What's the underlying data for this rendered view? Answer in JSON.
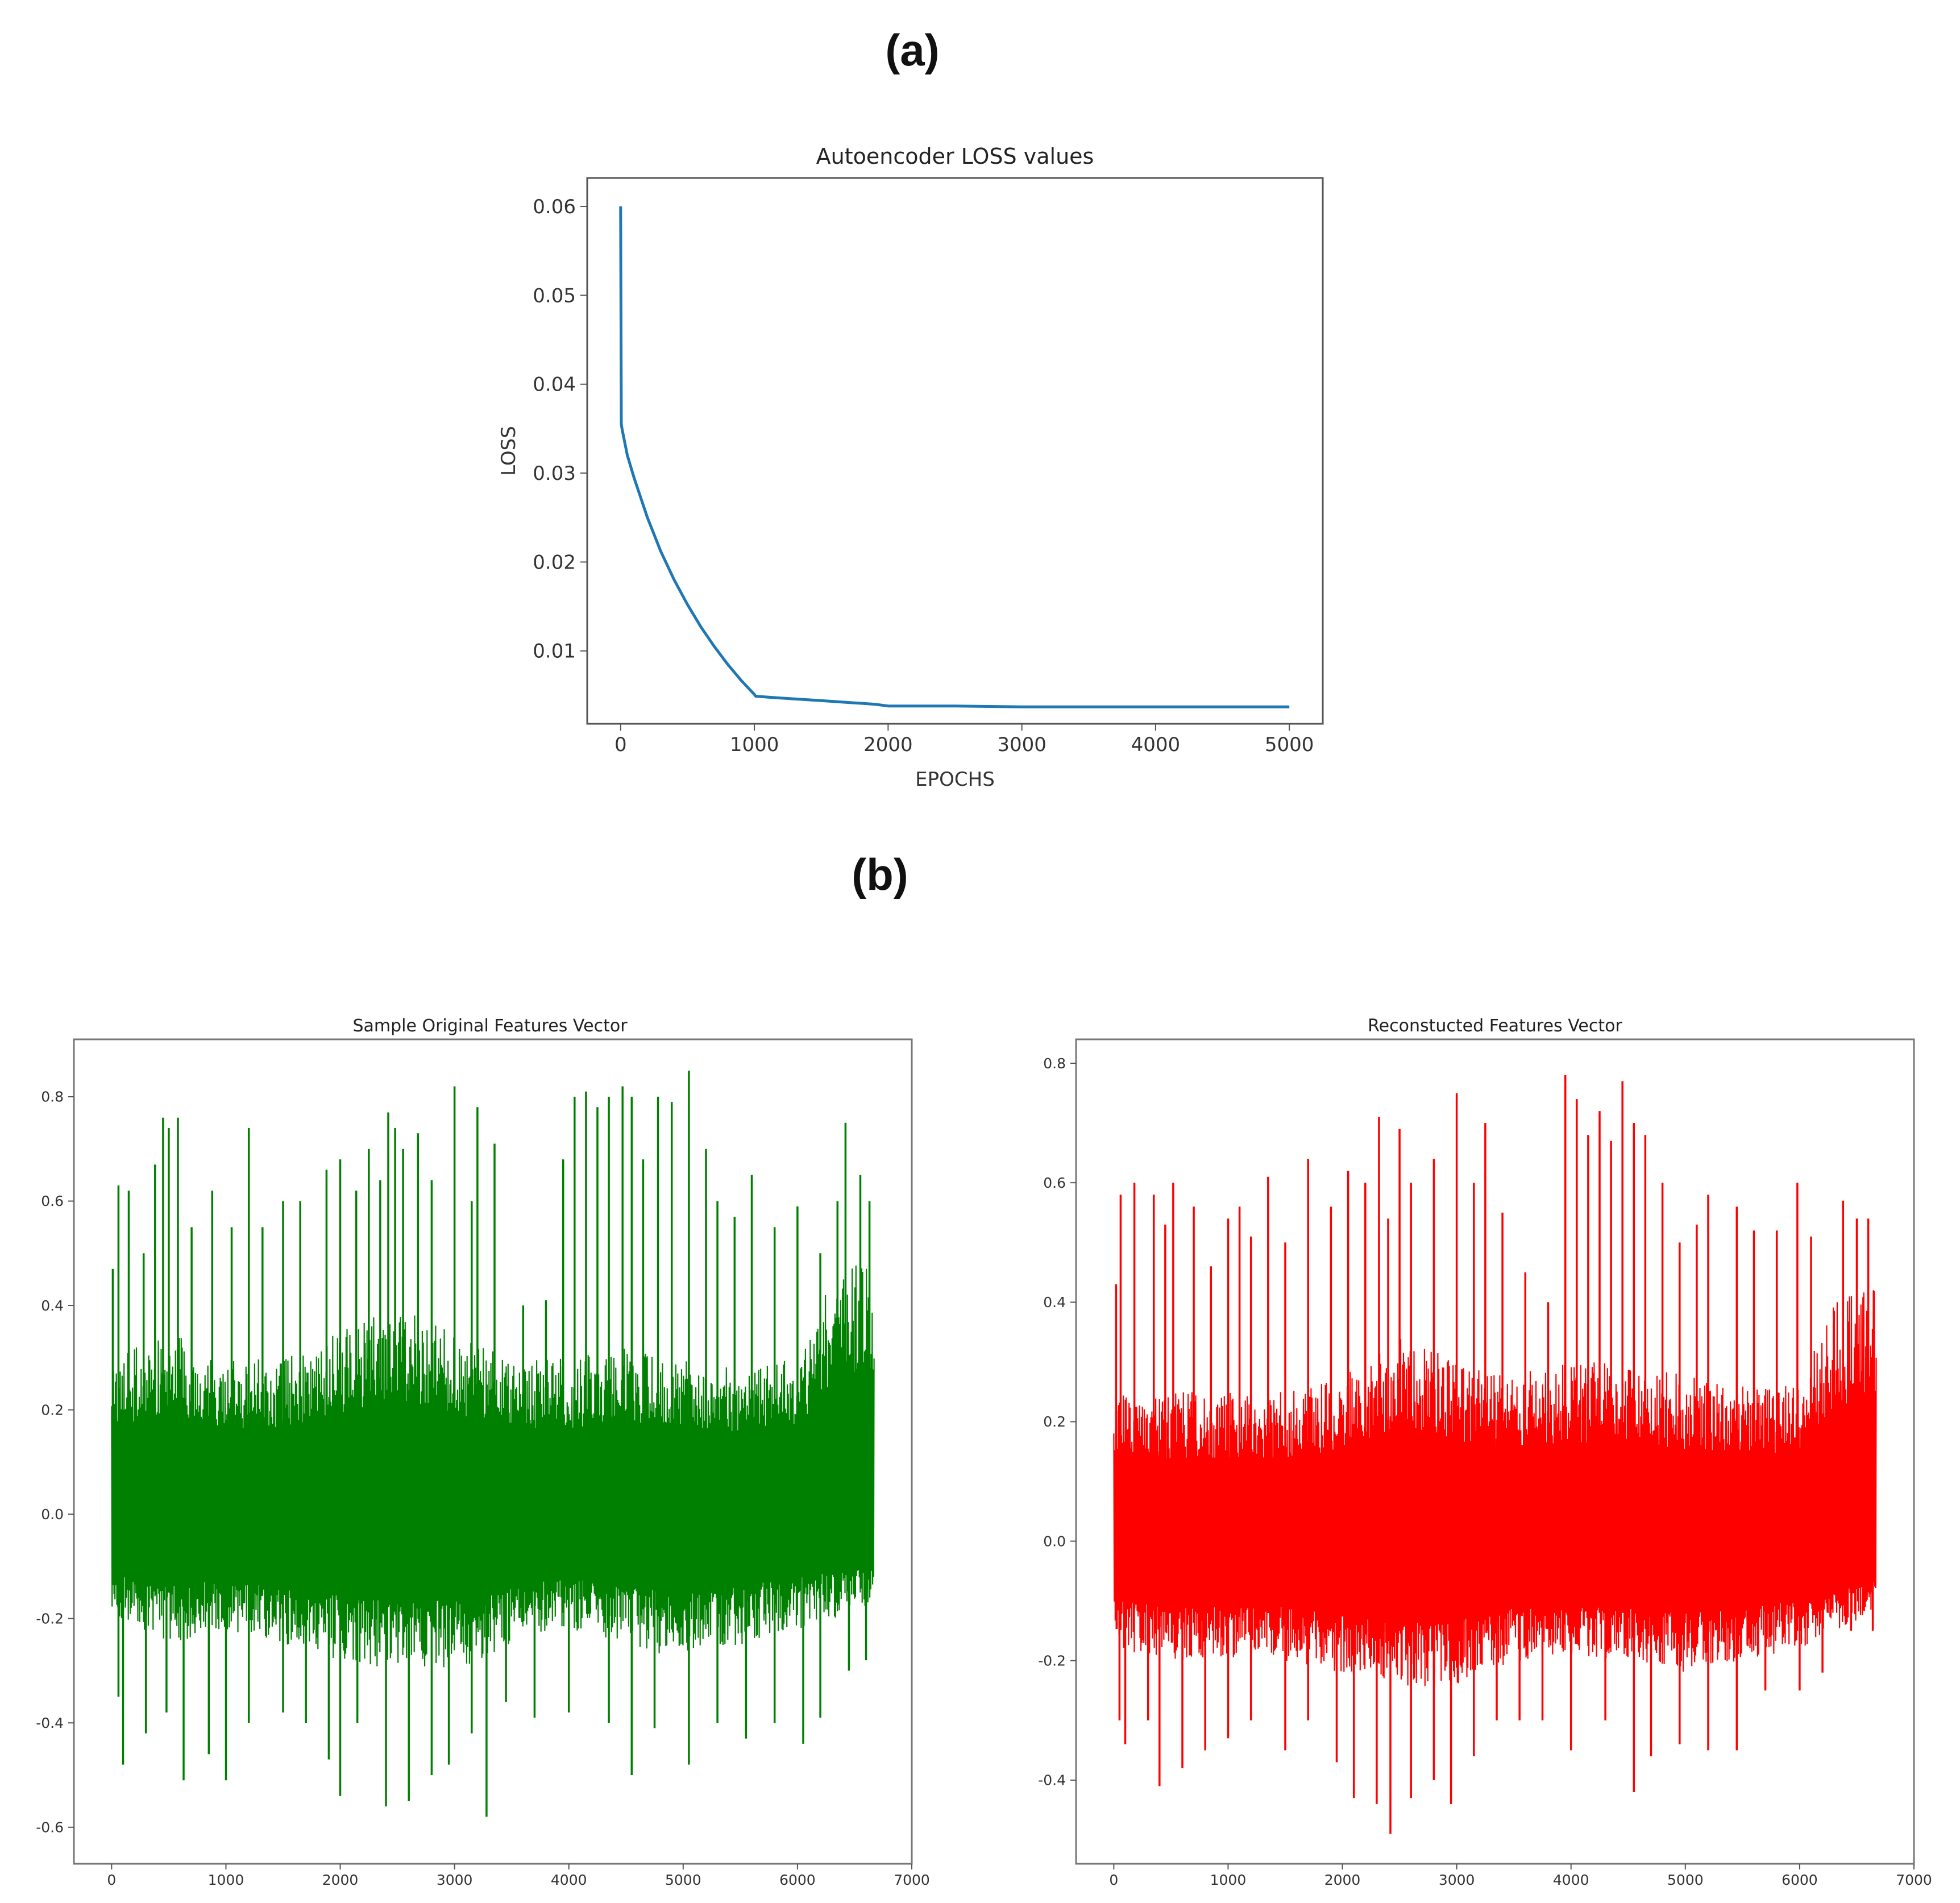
{
  "panel_labels": {
    "a": "(a)",
    "b": "(b)"
  },
  "chart_data": [
    {
      "type": "line",
      "title": "Autoencoder LOSS values",
      "xlabel": "EPOCHS",
      "ylabel": "LOSS",
      "xlim": [
        -250,
        5250
      ],
      "ylim": [
        0.0018,
        0.0632
      ],
      "xticks": [
        0,
        1000,
        2000,
        3000,
        4000,
        5000
      ],
      "yticks": [
        0.01,
        0.02,
        0.03,
        0.04,
        0.05,
        0.06
      ],
      "x_range": [
        0,
        5000
      ],
      "line_color": "#1f77b4",
      "grid": false,
      "series": [
        {
          "x": [
            0,
            5,
            10,
            50,
            100,
            200,
            300,
            400,
            500,
            600,
            700,
            800,
            900,
            1000,
            1010,
            1100,
            1200,
            1300,
            1400,
            1500,
            1600,
            1700,
            1800,
            1900,
            2000,
            2500,
            3000,
            3500,
            4000,
            4500,
            5000
          ],
          "values": [
            0.06,
            0.0355,
            0.035,
            0.032,
            0.0295,
            0.025,
            0.0212,
            0.018,
            0.0152,
            0.0127,
            0.0105,
            0.0085,
            0.0067,
            0.0051,
            0.0049,
            0.0048,
            0.0047,
            0.0046,
            0.0045,
            0.0044,
            0.0043,
            0.0042,
            0.0041,
            0.004,
            0.0038,
            0.0038,
            0.0037,
            0.0037,
            0.0037,
            0.0037,
            0.0037
          ]
        }
      ]
    },
    {
      "type": "line",
      "title": "Sample Original Features Vector",
      "xlim": [
        -330,
        7000
      ],
      "ylim": [
        -0.67,
        0.91
      ],
      "xticks": [
        0,
        1000,
        2000,
        3000,
        4000,
        5000,
        6000,
        7000
      ],
      "yticks": [
        -0.6,
        -0.4,
        -0.2,
        0.0,
        0.2,
        0.4,
        0.6,
        0.8
      ],
      "x_range": [
        0,
        6670
      ],
      "line_color": "#008000",
      "grid": false,
      "envelope": {
        "x": [
          0,
          500,
          1000,
          1500,
          2000,
          2500,
          3000,
          3500,
          4000,
          4500,
          5000,
          5500,
          6000,
          6300,
          6670
        ],
        "upper": [
          0.3,
          0.35,
          0.3,
          0.3,
          0.35,
          0.4,
          0.35,
          0.3,
          0.3,
          0.32,
          0.3,
          0.28,
          0.3,
          0.45,
          0.5
        ],
        "lower": [
          -0.2,
          -0.25,
          -0.22,
          -0.25,
          -0.28,
          -0.3,
          -0.3,
          -0.25,
          -0.22,
          -0.25,
          -0.28,
          -0.25,
          -0.22,
          -0.2,
          -0.18
        ]
      },
      "peaks": [
        {
          "x": 10,
          "y": 0.47
        },
        {
          "x": 60,
          "y": 0.63
        },
        {
          "x": 150,
          "y": 0.62
        },
        {
          "x": 280,
          "y": 0.5
        },
        {
          "x": 380,
          "y": 0.67
        },
        {
          "x": 450,
          "y": 0.76
        },
        {
          "x": 500,
          "y": 0.74
        },
        {
          "x": 580,
          "y": 0.76
        },
        {
          "x": 700,
          "y": 0.55
        },
        {
          "x": 880,
          "y": 0.62
        },
        {
          "x": 1050,
          "y": 0.55
        },
        {
          "x": 1200,
          "y": 0.74
        },
        {
          "x": 1320,
          "y": 0.55
        },
        {
          "x": 1500,
          "y": 0.6
        },
        {
          "x": 1650,
          "y": 0.6
        },
        {
          "x": 1880,
          "y": 0.66
        },
        {
          "x": 2000,
          "y": 0.68
        },
        {
          "x": 2140,
          "y": 0.62
        },
        {
          "x": 2250,
          "y": 0.7
        },
        {
          "x": 2350,
          "y": 0.64
        },
        {
          "x": 2420,
          "y": 0.77
        },
        {
          "x": 2480,
          "y": 0.74
        },
        {
          "x": 2550,
          "y": 0.7
        },
        {
          "x": 2680,
          "y": 0.73
        },
        {
          "x": 2800,
          "y": 0.64
        },
        {
          "x": 3000,
          "y": 0.82
        },
        {
          "x": 3150,
          "y": 0.6
        },
        {
          "x": 3200,
          "y": 0.78
        },
        {
          "x": 3350,
          "y": 0.71
        },
        {
          "x": 3600,
          "y": 0.4
        },
        {
          "x": 3800,
          "y": 0.41
        },
        {
          "x": 3950,
          "y": 0.68
        },
        {
          "x": 4050,
          "y": 0.8
        },
        {
          "x": 4150,
          "y": 0.81
        },
        {
          "x": 4250,
          "y": 0.78
        },
        {
          "x": 4350,
          "y": 0.8
        },
        {
          "x": 4470,
          "y": 0.82
        },
        {
          "x": 4550,
          "y": 0.8
        },
        {
          "x": 4650,
          "y": 0.68
        },
        {
          "x": 4780,
          "y": 0.8
        },
        {
          "x": 4900,
          "y": 0.79
        },
        {
          "x": 5050,
          "y": 0.85
        },
        {
          "x": 5200,
          "y": 0.7
        },
        {
          "x": 5300,
          "y": 0.6
        },
        {
          "x": 5450,
          "y": 0.57
        },
        {
          "x": 5600,
          "y": 0.65
        },
        {
          "x": 5800,
          "y": 0.55
        },
        {
          "x": 6000,
          "y": 0.59
        },
        {
          "x": 6200,
          "y": 0.5
        },
        {
          "x": 6350,
          "y": 0.6
        },
        {
          "x": 6420,
          "y": 0.75
        },
        {
          "x": 6550,
          "y": 0.65
        },
        {
          "x": 6630,
          "y": 0.6
        }
      ],
      "troughs": [
        {
          "x": 60,
          "y": -0.35
        },
        {
          "x": 100,
          "y": -0.48
        },
        {
          "x": 300,
          "y": -0.42
        },
        {
          "x": 480,
          "y": -0.38
        },
        {
          "x": 630,
          "y": -0.51
        },
        {
          "x": 850,
          "y": -0.46
        },
        {
          "x": 1000,
          "y": -0.51
        },
        {
          "x": 1200,
          "y": -0.4
        },
        {
          "x": 1500,
          "y": -0.38
        },
        {
          "x": 1700,
          "y": -0.4
        },
        {
          "x": 1900,
          "y": -0.47
        },
        {
          "x": 2000,
          "y": -0.54
        },
        {
          "x": 2150,
          "y": -0.4
        },
        {
          "x": 2400,
          "y": -0.56
        },
        {
          "x": 2600,
          "y": -0.55
        },
        {
          "x": 2800,
          "y": -0.5
        },
        {
          "x": 2950,
          "y": -0.48
        },
        {
          "x": 3150,
          "y": -0.42
        },
        {
          "x": 3280,
          "y": -0.58
        },
        {
          "x": 3450,
          "y": -0.36
        },
        {
          "x": 3700,
          "y": -0.39
        },
        {
          "x": 4000,
          "y": -0.38
        },
        {
          "x": 4350,
          "y": -0.4
        },
        {
          "x": 4550,
          "y": -0.5
        },
        {
          "x": 4750,
          "y": -0.41
        },
        {
          "x": 5050,
          "y": -0.48
        },
        {
          "x": 5300,
          "y": -0.4
        },
        {
          "x": 5550,
          "y": -0.43
        },
        {
          "x": 5800,
          "y": -0.4
        },
        {
          "x": 6050,
          "y": -0.44
        },
        {
          "x": 6200,
          "y": -0.39
        },
        {
          "x": 6450,
          "y": -0.3
        },
        {
          "x": 6600,
          "y": -0.28
        }
      ]
    },
    {
      "type": "line",
      "title": "Reconstucted Features Vector",
      "xlim": [
        -330,
        7000
      ],
      "ylim": [
        -0.54,
        0.84
      ],
      "xticks": [
        0,
        1000,
        2000,
        3000,
        4000,
        5000,
        6000,
        7000
      ],
      "yticks": [
        -0.4,
        -0.2,
        0.0,
        0.2,
        0.4,
        0.6,
        0.8
      ],
      "x_range": [
        0,
        6670
      ],
      "line_color": "#ff0000",
      "grid": false,
      "envelope": {
        "x": [
          0,
          500,
          1000,
          1500,
          2000,
          2500,
          3000,
          3500,
          4000,
          4500,
          5000,
          5500,
          6000,
          6300,
          6670
        ],
        "upper": [
          0.25,
          0.25,
          0.25,
          0.25,
          0.28,
          0.35,
          0.3,
          0.28,
          0.3,
          0.3,
          0.28,
          0.26,
          0.26,
          0.4,
          0.45
        ],
        "lower": [
          -0.18,
          -0.2,
          -0.2,
          -0.2,
          -0.22,
          -0.25,
          -0.24,
          -0.2,
          -0.2,
          -0.2,
          -0.22,
          -0.2,
          -0.18,
          -0.15,
          -0.12
        ]
      },
      "peaks": [
        {
          "x": 20,
          "y": 0.43
        },
        {
          "x": 60,
          "y": 0.58
        },
        {
          "x": 180,
          "y": 0.6
        },
        {
          "x": 350,
          "y": 0.58
        },
        {
          "x": 450,
          "y": 0.53
        },
        {
          "x": 520,
          "y": 0.6
        },
        {
          "x": 700,
          "y": 0.56
        },
        {
          "x": 850,
          "y": 0.46
        },
        {
          "x": 1000,
          "y": 0.54
        },
        {
          "x": 1100,
          "y": 0.56
        },
        {
          "x": 1200,
          "y": 0.51
        },
        {
          "x": 1350,
          "y": 0.61
        },
        {
          "x": 1500,
          "y": 0.5
        },
        {
          "x": 1700,
          "y": 0.64
        },
        {
          "x": 1900,
          "y": 0.56
        },
        {
          "x": 2050,
          "y": 0.62
        },
        {
          "x": 2200,
          "y": 0.6
        },
        {
          "x": 2320,
          "y": 0.71
        },
        {
          "x": 2400,
          "y": 0.54
        },
        {
          "x": 2500,
          "y": 0.69
        },
        {
          "x": 2600,
          "y": 0.6
        },
        {
          "x": 2800,
          "y": 0.64
        },
        {
          "x": 3000,
          "y": 0.75
        },
        {
          "x": 3150,
          "y": 0.6
        },
        {
          "x": 3250,
          "y": 0.7
        },
        {
          "x": 3400,
          "y": 0.55
        },
        {
          "x": 3600,
          "y": 0.45
        },
        {
          "x": 3800,
          "y": 0.4
        },
        {
          "x": 3950,
          "y": 0.78
        },
        {
          "x": 4050,
          "y": 0.74
        },
        {
          "x": 4150,
          "y": 0.68
        },
        {
          "x": 4250,
          "y": 0.72
        },
        {
          "x": 4350,
          "y": 0.67
        },
        {
          "x": 4450,
          "y": 0.77
        },
        {
          "x": 4550,
          "y": 0.7
        },
        {
          "x": 4650,
          "y": 0.68
        },
        {
          "x": 4800,
          "y": 0.6
        },
        {
          "x": 4950,
          "y": 0.5
        },
        {
          "x": 5100,
          "y": 0.53
        },
        {
          "x": 5200,
          "y": 0.58
        },
        {
          "x": 5450,
          "y": 0.56
        },
        {
          "x": 5600,
          "y": 0.52
        },
        {
          "x": 5800,
          "y": 0.52
        },
        {
          "x": 5980,
          "y": 0.6
        },
        {
          "x": 6100,
          "y": 0.51
        },
        {
          "x": 6380,
          "y": 0.57
        },
        {
          "x": 6500,
          "y": 0.54
        },
        {
          "x": 6600,
          "y": 0.54
        }
      ],
      "troughs": [
        {
          "x": 50,
          "y": -0.3
        },
        {
          "x": 100,
          "y": -0.34
        },
        {
          "x": 300,
          "y": -0.3
        },
        {
          "x": 400,
          "y": -0.41
        },
        {
          "x": 600,
          "y": -0.38
        },
        {
          "x": 800,
          "y": -0.35
        },
        {
          "x": 1000,
          "y": -0.33
        },
        {
          "x": 1200,
          "y": -0.3
        },
        {
          "x": 1500,
          "y": -0.35
        },
        {
          "x": 1700,
          "y": -0.3
        },
        {
          "x": 1950,
          "y": -0.37
        },
        {
          "x": 2100,
          "y": -0.43
        },
        {
          "x": 2300,
          "y": -0.44
        },
        {
          "x": 2420,
          "y": -0.49
        },
        {
          "x": 2600,
          "y": -0.43
        },
        {
          "x": 2800,
          "y": -0.4
        },
        {
          "x": 2950,
          "y": -0.44
        },
        {
          "x": 3150,
          "y": -0.36
        },
        {
          "x": 3350,
          "y": -0.3
        },
        {
          "x": 3550,
          "y": -0.3
        },
        {
          "x": 3750,
          "y": -0.3
        },
        {
          "x": 4000,
          "y": -0.35
        },
        {
          "x": 4300,
          "y": -0.3
        },
        {
          "x": 4550,
          "y": -0.42
        },
        {
          "x": 4700,
          "y": -0.36
        },
        {
          "x": 4950,
          "y": -0.34
        },
        {
          "x": 5200,
          "y": -0.35
        },
        {
          "x": 5450,
          "y": -0.35
        },
        {
          "x": 5700,
          "y": -0.25
        },
        {
          "x": 6000,
          "y": -0.25
        },
        {
          "x": 6200,
          "y": -0.22
        },
        {
          "x": 6450,
          "y": -0.15
        },
        {
          "x": 6640,
          "y": -0.15
        }
      ]
    }
  ]
}
